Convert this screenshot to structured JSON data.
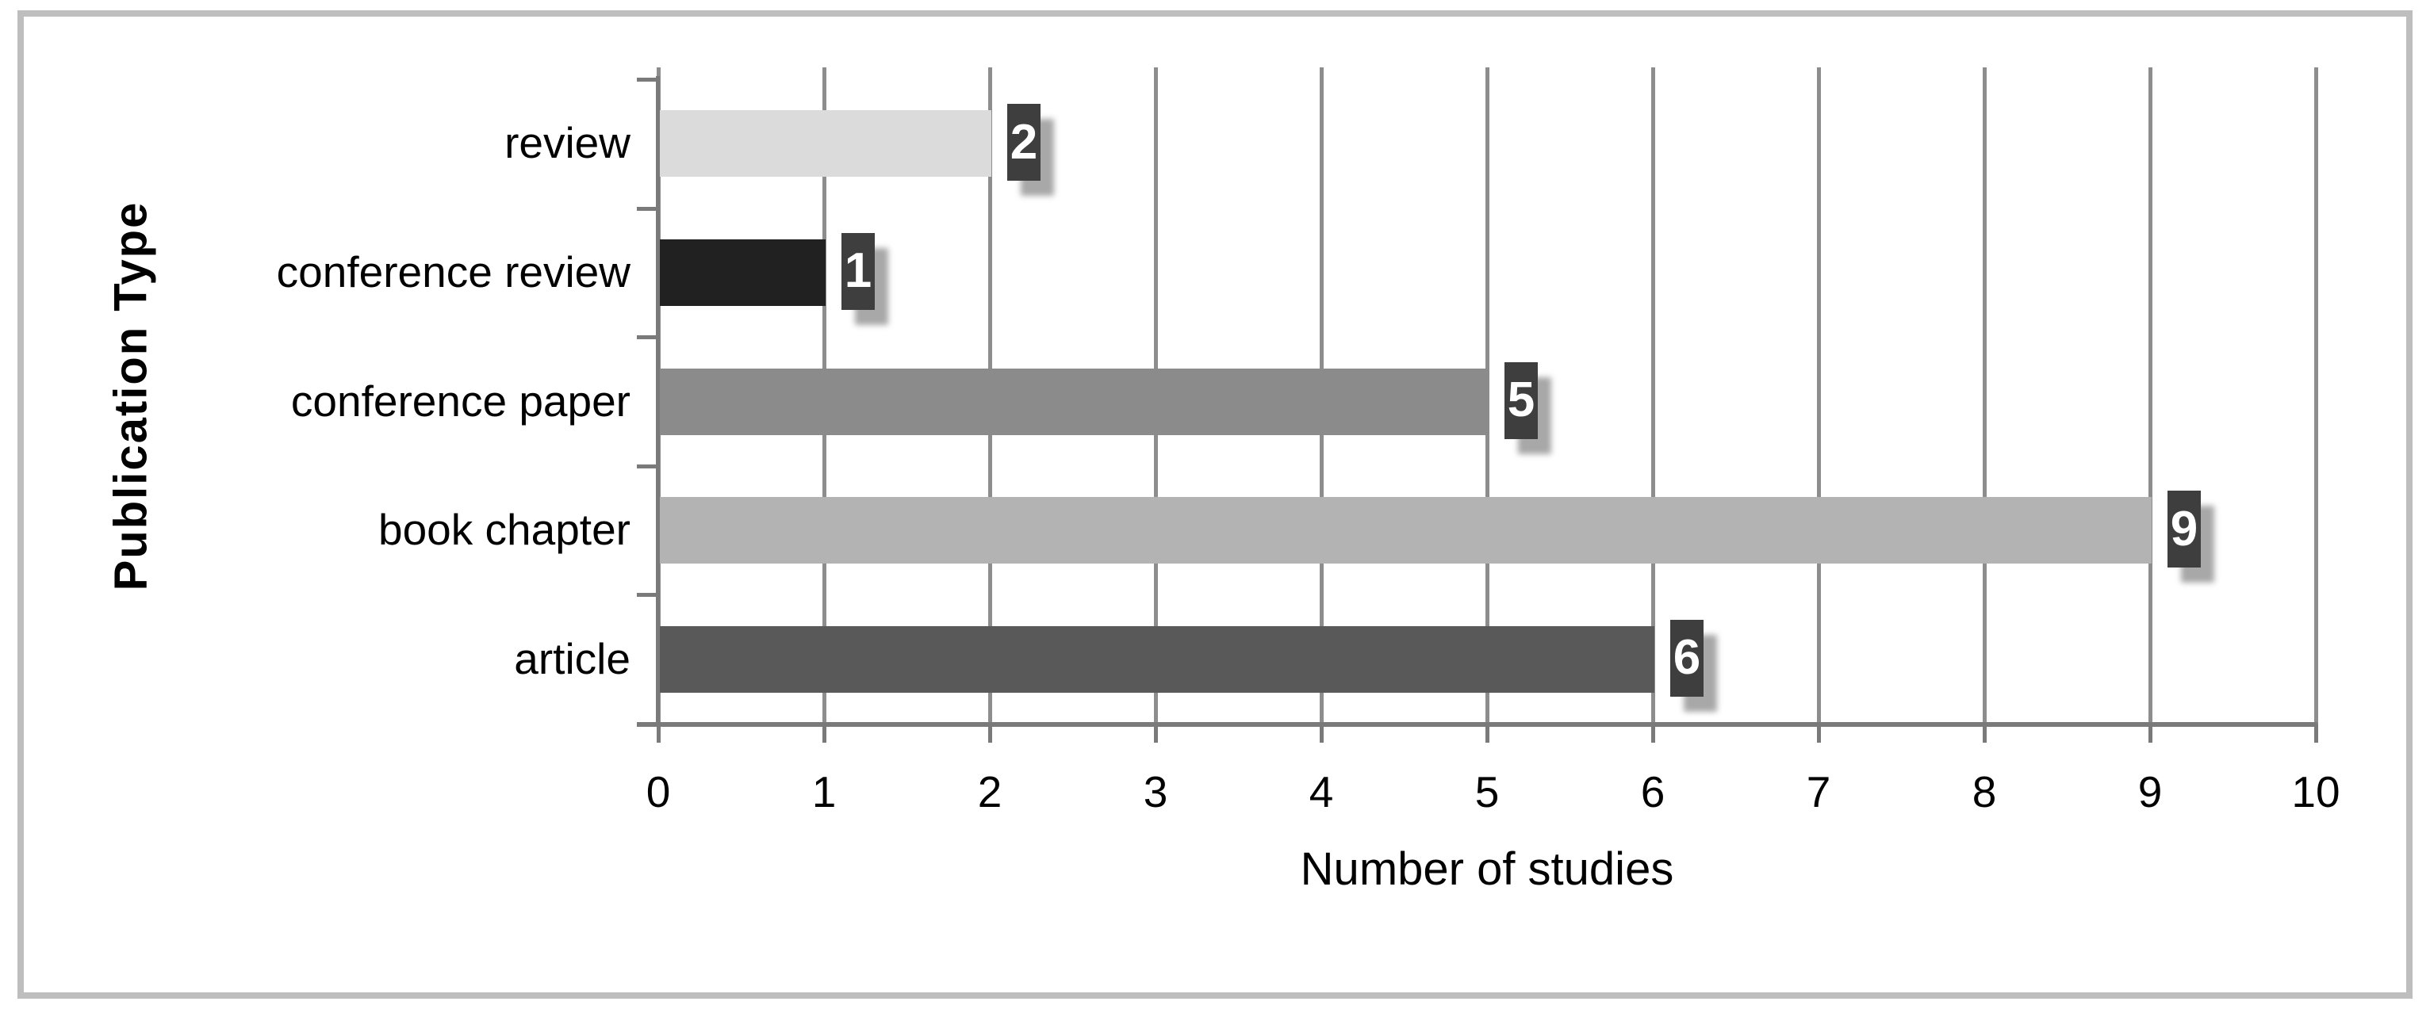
{
  "figure": {
    "frame_color": "#bebebe",
    "background_color": "#ffffff",
    "gridline_color": "#8d8d8d",
    "axis_color": "#7a7a7a"
  },
  "chart_data": {
    "type": "bar",
    "orientation": "horizontal",
    "title": "",
    "xlabel": "Number of studies",
    "ylabel": "Publication Type",
    "categories_top_to_bottom": [
      "review",
      "conference review",
      "conference paper",
      "book chapter",
      "article"
    ],
    "values": [
      2,
      1,
      5,
      9,
      6
    ],
    "xlim": [
      0,
      10
    ],
    "xticks": [
      0,
      1,
      2,
      3,
      4,
      5,
      6,
      7,
      8,
      9,
      10
    ],
    "grid": "vertical gridlines on",
    "legend": "none",
    "bar_colors": [
      "#dbdbdb",
      "#212121",
      "#8b8b8b",
      "#b3b3b3",
      "#595959"
    ],
    "data_labels": {
      "values": [
        2,
        1,
        5,
        9,
        6
      ],
      "background": "#3e3e3e",
      "text_color": "#ffffff",
      "shadow_color": "#a8a8a8"
    }
  }
}
